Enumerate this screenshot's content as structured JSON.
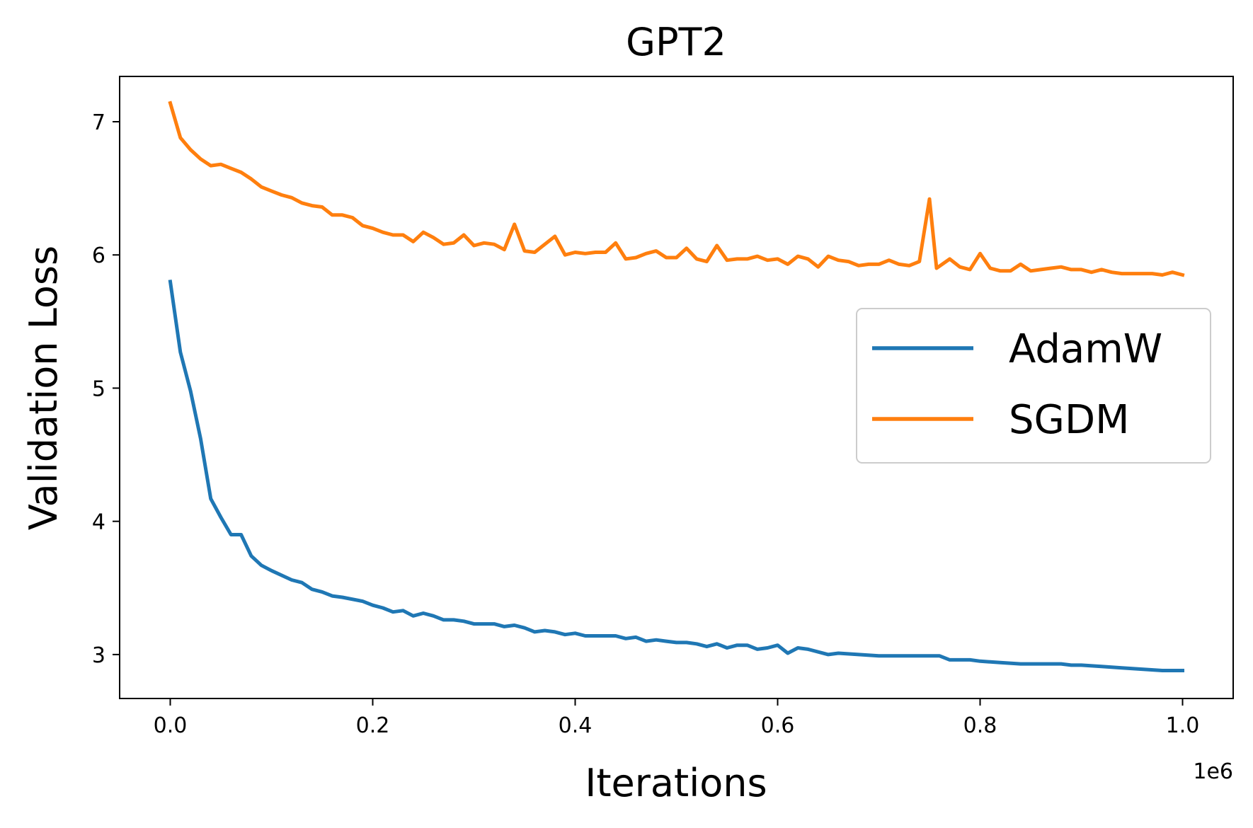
{
  "chart_data": {
    "type": "line",
    "title": "GPT2",
    "xlabel": "Iterations",
    "ylabel": "Validation Loss",
    "x_offset_label": "1e6",
    "xlim": [
      -0.05,
      1.05
    ],
    "ylim": [
      2.67,
      7.34
    ],
    "x_ticks": [
      0.0,
      0.2,
      0.4,
      0.6,
      0.8,
      1.0
    ],
    "x_tick_labels": [
      "0.0",
      "0.2",
      "0.4",
      "0.6",
      "0.8",
      "1.0"
    ],
    "y_ticks": [
      3,
      4,
      5,
      6,
      7
    ],
    "y_tick_labels": [
      "3",
      "4",
      "5",
      "6",
      "7"
    ],
    "grid": false,
    "legend_position": "center-right",
    "series": [
      {
        "name": "AdamW",
        "color": "#1f77b4",
        "x": [
          0.0,
          0.01,
          0.02,
          0.03,
          0.04,
          0.05,
          0.06,
          0.07,
          0.08,
          0.09,
          0.1,
          0.12,
          0.13,
          0.14,
          0.15,
          0.16,
          0.17,
          0.19,
          0.2,
          0.21,
          0.22,
          0.23,
          0.24,
          0.25,
          0.26,
          0.27,
          0.28,
          0.29,
          0.3,
          0.32,
          0.33,
          0.34,
          0.35,
          0.36,
          0.37,
          0.38,
          0.39,
          0.4,
          0.41,
          0.43,
          0.44,
          0.45,
          0.46,
          0.47,
          0.48,
          0.49,
          0.5,
          0.51,
          0.52,
          0.53,
          0.54,
          0.55,
          0.56,
          0.57,
          0.58,
          0.59,
          0.6,
          0.61,
          0.62,
          0.63,
          0.65,
          0.66,
          0.68,
          0.7,
          0.71,
          0.72,
          0.73,
          0.74,
          0.76,
          0.77,
          0.79,
          0.8,
          0.82,
          0.84,
          0.86,
          0.88,
          0.89,
          0.9,
          0.92,
          0.94,
          0.96,
          0.98,
          1.0
        ],
        "values": [
          5.8,
          5.27,
          4.98,
          4.62,
          4.17,
          4.03,
          3.9,
          3.9,
          3.74,
          3.67,
          3.63,
          3.56,
          3.54,
          3.49,
          3.47,
          3.44,
          3.43,
          3.4,
          3.37,
          3.35,
          3.32,
          3.33,
          3.29,
          3.31,
          3.29,
          3.26,
          3.26,
          3.25,
          3.23,
          3.23,
          3.21,
          3.22,
          3.2,
          3.17,
          3.18,
          3.17,
          3.15,
          3.16,
          3.14,
          3.14,
          3.14,
          3.12,
          3.13,
          3.1,
          3.11,
          3.1,
          3.09,
          3.09,
          3.08,
          3.06,
          3.08,
          3.05,
          3.07,
          3.07,
          3.04,
          3.05,
          3.07,
          3.01,
          3.05,
          3.04,
          3.0,
          3.01,
          3.0,
          2.99,
          2.99,
          2.99,
          2.99,
          2.99,
          2.99,
          2.96,
          2.96,
          2.95,
          2.94,
          2.93,
          2.93,
          2.93,
          2.92,
          2.92,
          2.91,
          2.9,
          2.89,
          2.88,
          2.88
        ]
      },
      {
        "name": "SGDM",
        "color": "#ff7f0e",
        "x": [
          0.0,
          0.01,
          0.02,
          0.03,
          0.04,
          0.05,
          0.06,
          0.07,
          0.08,
          0.09,
          0.1,
          0.11,
          0.12,
          0.13,
          0.14,
          0.15,
          0.16,
          0.17,
          0.18,
          0.19,
          0.2,
          0.21,
          0.22,
          0.23,
          0.24,
          0.25,
          0.26,
          0.27,
          0.28,
          0.29,
          0.3,
          0.31,
          0.32,
          0.33,
          0.34,
          0.35,
          0.36,
          0.37,
          0.38,
          0.39,
          0.4,
          0.41,
          0.42,
          0.43,
          0.44,
          0.45,
          0.46,
          0.47,
          0.48,
          0.49,
          0.5,
          0.51,
          0.52,
          0.53,
          0.54,
          0.55,
          0.56,
          0.57,
          0.58,
          0.59,
          0.6,
          0.61,
          0.62,
          0.63,
          0.64,
          0.65,
          0.66,
          0.67,
          0.68,
          0.69,
          0.7,
          0.71,
          0.72,
          0.73,
          0.74,
          0.75,
          0.757,
          0.77,
          0.78,
          0.79,
          0.8,
          0.81,
          0.82,
          0.83,
          0.84,
          0.85,
          0.86,
          0.87,
          0.88,
          0.89,
          0.9,
          0.91,
          0.92,
          0.93,
          0.94,
          0.95,
          0.96,
          0.97,
          0.98,
          0.99,
          1.0
        ],
        "values": [
          7.14,
          6.88,
          6.79,
          6.72,
          6.67,
          6.68,
          6.65,
          6.62,
          6.57,
          6.51,
          6.48,
          6.45,
          6.43,
          6.39,
          6.37,
          6.36,
          6.3,
          6.3,
          6.28,
          6.22,
          6.2,
          6.17,
          6.15,
          6.15,
          6.1,
          6.17,
          6.13,
          6.08,
          6.09,
          6.15,
          6.07,
          6.09,
          6.08,
          6.04,
          6.23,
          6.03,
          6.02,
          6.08,
          6.14,
          6.0,
          6.02,
          6.01,
          6.02,
          6.02,
          6.09,
          5.97,
          5.98,
          6.01,
          6.03,
          5.98,
          5.98,
          6.05,
          5.97,
          5.95,
          6.07,
          5.96,
          5.97,
          5.97,
          5.99,
          5.96,
          5.97,
          5.93,
          5.99,
          5.97,
          5.91,
          5.99,
          5.96,
          5.95,
          5.92,
          5.93,
          5.93,
          5.96,
          5.93,
          5.92,
          5.95,
          6.42,
          5.9,
          5.97,
          5.91,
          5.89,
          6.01,
          5.9,
          5.88,
          5.88,
          5.93,
          5.88,
          5.89,
          5.9,
          5.91,
          5.89,
          5.89,
          5.87,
          5.89,
          5.87,
          5.86,
          5.86,
          5.86,
          5.86,
          5.85,
          5.87,
          5.85
        ]
      }
    ]
  }
}
